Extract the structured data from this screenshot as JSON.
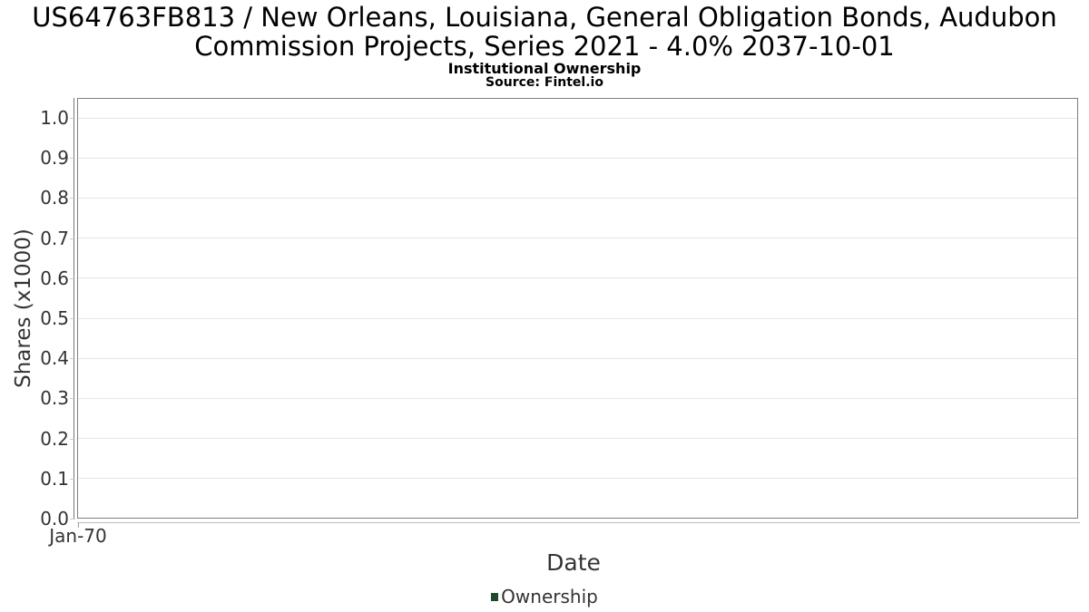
{
  "header": {
    "title_line1": "US64763FB813 / New Orleans, Louisiana, General Obligation Bonds, Audubon",
    "title_line2": "Commission Projects, Series 2021 - 4.0% 2037-10-01",
    "subtitle": "Institutional Ownership",
    "source": "Source: Fintel.io"
  },
  "chart_data": {
    "type": "line",
    "title": "US64763FB813 / New Orleans, Louisiana, General Obligation Bonds, Audubon Commission Projects, Series 2021 - 4.0% 2037-10-01",
    "subtitle": "Institutional Ownership",
    "source": "Source: Fintel.io",
    "xlabel": "Date",
    "ylabel": "Shares (x1000)",
    "x_tick_labels": [
      "Jan-70"
    ],
    "y_ticks": [
      0.0,
      0.1,
      0.2,
      0.3,
      0.4,
      0.5,
      0.6,
      0.7,
      0.8,
      0.9,
      1.0
    ],
    "y_tick_labels": [
      "0.0",
      "0.1",
      "0.2",
      "0.3",
      "0.4",
      "0.5",
      "0.6",
      "0.7",
      "0.8",
      "0.9",
      "1.0"
    ],
    "ylim": [
      0,
      1.05
    ],
    "grid": "horizontal",
    "legend_position": "bottom-center",
    "legend": [
      {
        "label": "Ownership",
        "color": "#1e4b2b"
      }
    ],
    "series": [
      {
        "name": "Ownership",
        "color": "#1e4b2b",
        "x": [],
        "y": []
      }
    ]
  },
  "colors": {
    "background": "#ffffff",
    "plot_border": "#7f7f7f",
    "gridline": "#e6e6e6",
    "axis_text": "#333333",
    "title_text": "#000000",
    "series_green": "#1e4b2b"
  }
}
